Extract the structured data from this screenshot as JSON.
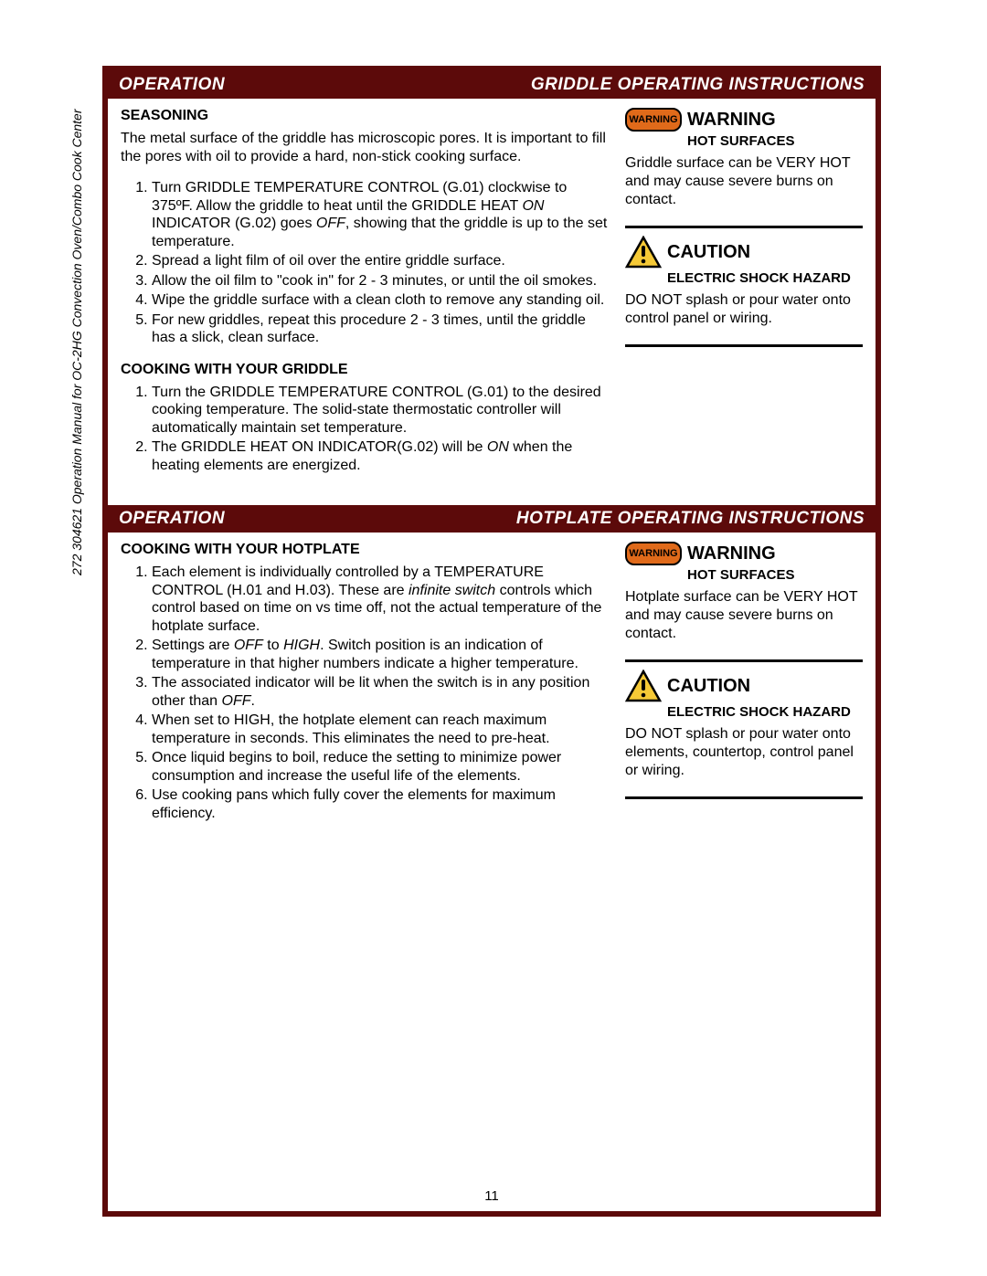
{
  "colors": {
    "frame": "#5c0a0a",
    "header_bg": "#5c0a0a",
    "header_text": "#ffffff",
    "warning_badge_bg": "#e06a1a",
    "caution_fill": "#f5c936",
    "text": "#000000",
    "page_bg": "#ffffff"
  },
  "spine_text": "272   304621   Operation Manual for OC-2HG Convection Oven/Combo Cook Center",
  "page_number": "11",
  "sections": [
    {
      "header_left": "OPERATION",
      "header_right": "GRIDDLE OPERATING INSTRUCTIONS",
      "main": {
        "blocks": [
          {
            "subhead": "SEASONING",
            "para": "The metal surface of the griddle has microscopic pores.  It is important to fill the pores with oil to provide a hard, non-stick cooking surface.",
            "steps": [
              "Turn GRIDDLE TEMPERATURE CONTROL (G.01) clockwise to 375ºF.  Allow the griddle to heat until the GRIDDLE HEAT <i>ON</i> INDICATOR (G.02) goes <i>OFF</i>, showing that the griddle is up to the set temperature.",
              "Spread a light film of oil over the entire griddle surface.",
              "Allow the oil film to \"cook in\" for 2 - 3 minutes, or until the oil smokes.",
              "Wipe the griddle surface with a clean cloth to remove any standing oil.",
              "For new griddles, repeat this procedure 2 - 3 times, until the griddle has a slick, clean surface."
            ]
          },
          {
            "subhead": "COOKING WITH YOUR GRIDDLE",
            "steps": [
              "Turn the GRIDDLE TEMPERATURE CONTROL (G.01) to the desired cooking temperature.  The solid-state thermostatic controller will automatically maintain set temperature.",
              "The GRIDDLE HEAT ON INDICATOR(G.02) will be <i>ON</i> when the heating elements are energized."
            ]
          }
        ]
      },
      "side": [
        {
          "type": "warning",
          "badge": "WARNING",
          "title": "WARNING",
          "sub": "HOT SURFACES",
          "body": "Griddle surface can be VERY HOT and may cause severe burns on contact."
        },
        {
          "type": "caution",
          "title": "CAUTION",
          "sub": "ELECTRIC SHOCK HAZARD",
          "body": "DO NOT splash or pour water onto control panel or wiring."
        }
      ]
    },
    {
      "header_left": "OPERATION",
      "header_right": "HOTPLATE OPERATING INSTRUCTIONS",
      "main": {
        "blocks": [
          {
            "subhead": "COOKING WITH YOUR HOTPLATE",
            "steps": [
              "Each element is individually controlled by a TEMPERATURE CONTROL (H.01 and H.03).  These are <i>infinite switch</i> controls which control based on time on vs time off, not the actual temperature of the hotplate surface.",
              "Settings are <i>OFF</i> to <i>HIGH</i>.  Switch position is an indication of temperature in that higher numbers indicate a higher temperature.",
              "The associated indicator will be lit when the switch is in any position other than <i>OFF</i>.",
              "When set to HIGH, the hotplate element can reach maximum temperature in seconds.  This eliminates the need to pre-heat.",
              "Once liquid begins to boil, reduce the setting to minimize power consumption and increase the useful life of the elements.",
              "Use cooking pans which fully cover the elements for maximum efficiency."
            ]
          }
        ]
      },
      "side": [
        {
          "type": "warning",
          "badge": "WARNING",
          "title": "WARNING",
          "sub": "HOT SURFACES",
          "body": "Hotplate surface can be VERY HOT and may cause severe burns on contact."
        },
        {
          "type": "caution",
          "title": "CAUTION",
          "sub": "ELECTRIC SHOCK HAZARD",
          "body": "DO NOT splash or pour water onto elements, countertop, control panel or wiring."
        }
      ]
    }
  ]
}
